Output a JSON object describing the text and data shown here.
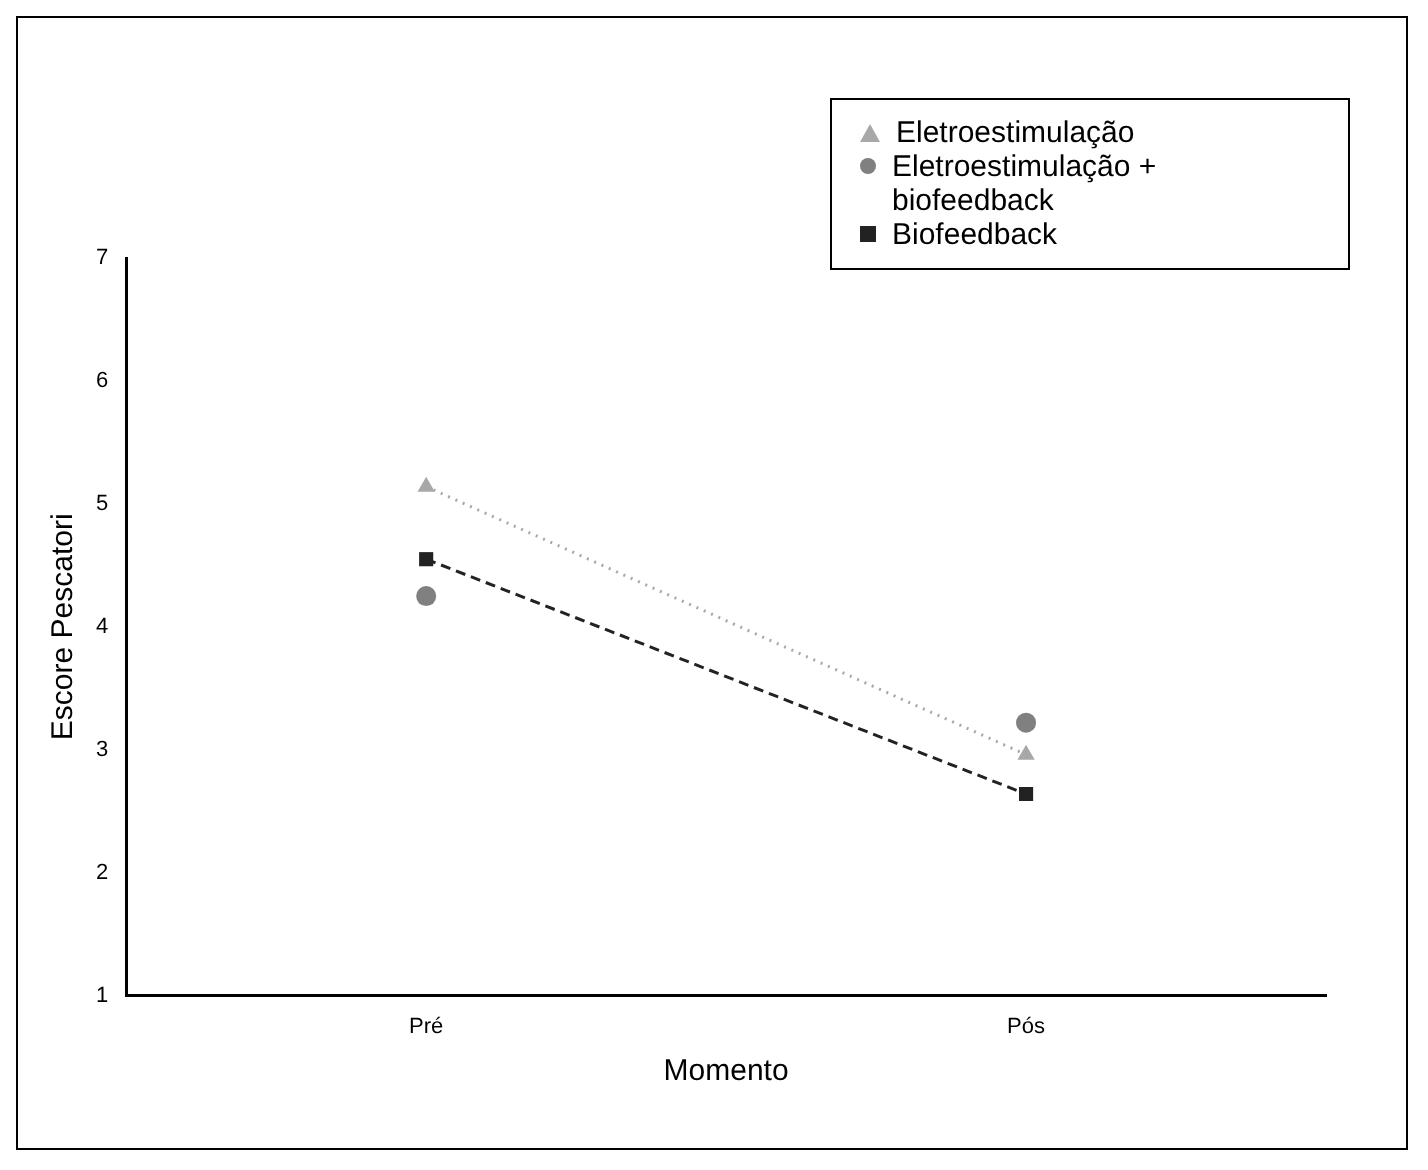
{
  "chart_data": {
    "type": "line",
    "xlabel": "Momento",
    "ylabel": "Escore Pescatori",
    "categories": [
      "Pré",
      "Pós"
    ],
    "series": [
      {
        "name": "Eletroestimulação",
        "color": "#a8a8a8",
        "values": [
          5.14,
          2.96
        ],
        "marker": "triangle",
        "line_style": "dotted"
      },
      {
        "name": "Eletroestimulação + biofeedback",
        "color": "#808080",
        "values": [
          4.25,
          3.22
        ],
        "marker": "circle",
        "type": "scatter"
      },
      {
        "name": "Biofeedback",
        "color": "#222222",
        "values": [
          4.55,
          2.64
        ],
        "marker": "square",
        "line_style": "dashed"
      }
    ],
    "ylim": [
      1,
      7
    ],
    "yticks": [
      1,
      2,
      3,
      4,
      5,
      6,
      7
    ],
    "grid": false,
    "legend": "top right"
  }
}
